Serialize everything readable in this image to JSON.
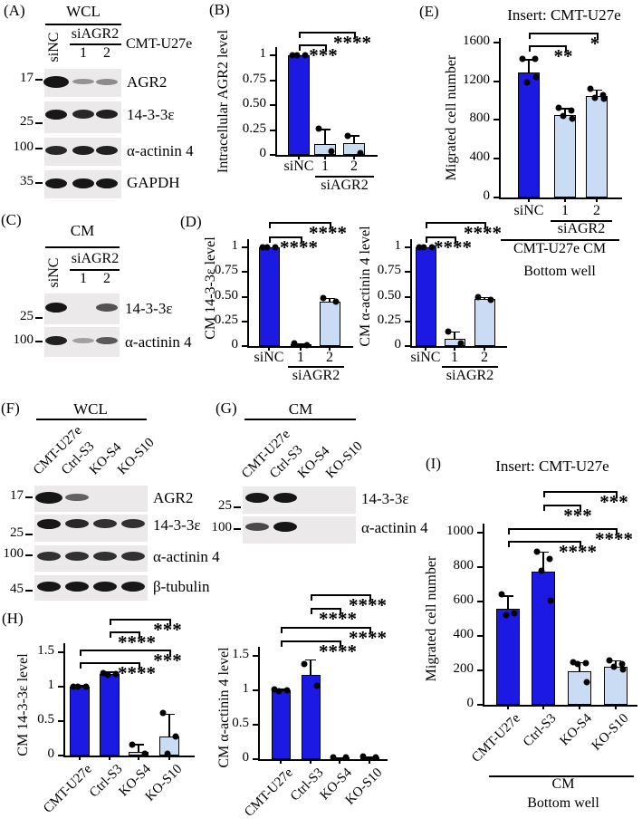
{
  "colors": {
    "dark_bar": "#1c19e3",
    "light_bar": "#cadcf3",
    "bar_border": "#000000",
    "blot_bg": "#ebe9e9",
    "band": "#161616",
    "text": "#000000"
  },
  "panel_letters": {
    "A": "(A)",
    "B": "(B)",
    "C": "(C)",
    "D": "(D)",
    "E": "(E)",
    "F": "(F)",
    "G": "(G)",
    "H": "(H)",
    "I": "(I)"
  },
  "blots": [
    {
      "id": "A",
      "header": "WCL",
      "first_lane": "siNC",
      "group_label": "siAGR2",
      "group_lanes": [
        "1",
        "2"
      ],
      "side_label": "CMT-U27e",
      "rows": [
        {
          "marker": "17",
          "label": "AGR2",
          "bands": [
            1.3,
            0.2,
            0.25
          ]
        },
        {
          "marker": "25",
          "label": "14-3-3ε",
          "bands": [
            0.95,
            0.85,
            0.9
          ]
        },
        {
          "marker": "100",
          "label": "α-actinin 4",
          "bands": [
            0.85,
            0.9,
            0.9
          ]
        },
        {
          "marker": "35",
          "label": "GAPDH",
          "bands": [
            1,
            1,
            1
          ]
        }
      ]
    },
    {
      "id": "C",
      "header": "CM",
      "first_lane": "siNC",
      "group_label": "siAGR2",
      "group_lanes": [
        "1",
        "2"
      ],
      "side_label": "",
      "rows": [
        {
          "marker": "25",
          "label": "14-3-3ε",
          "bands": [
            1,
            0,
            0.6
          ]
        },
        {
          "marker": "100",
          "label": "α-actinin 4",
          "bands": [
            0.9,
            0.12,
            0.55
          ]
        }
      ]
    },
    {
      "id": "F",
      "header": "WCL",
      "lanes": [
        "CMT-U27e",
        "Ctrl-S3",
        "KO-S4",
        "KO-S10"
      ],
      "rows": [
        {
          "marker": "17",
          "label": "AGR2",
          "bands": [
            1.3,
            0.5,
            0,
            0
          ]
        },
        {
          "marker": "25",
          "label": "14-3-3ε",
          "bands": [
            0.95,
            0.85,
            0.8,
            0.8
          ]
        },
        {
          "marker": "100",
          "label": "α-actinin 4",
          "bands": [
            0.8,
            0.8,
            0.8,
            0.8
          ]
        },
        {
          "marker": "45",
          "label": "β-tubulin",
          "bands": [
            1,
            1,
            0.95,
            0.95
          ]
        }
      ]
    },
    {
      "id": "G",
      "header": "CM",
      "lanes": [
        "CMT-U27e",
        "Ctrl-S3",
        "KO-S4",
        "KO-S10"
      ],
      "rows": [
        {
          "marker": "25",
          "label": "14-3-3ε",
          "bands": [
            0.95,
            1,
            0,
            0
          ]
        },
        {
          "marker": "100",
          "label": "α-actinin 4",
          "bands": [
            0.65,
            1,
            0,
            0
          ]
        }
      ]
    }
  ],
  "chart_data": [
    {
      "id": "B",
      "type": "bar",
      "title": "",
      "ylabel": "Intracellular AGR2 level",
      "categories": [
        "siNC",
        "1",
        "2"
      ],
      "values": [
        1,
        0.11,
        0.12
      ],
      "errors": [
        0,
        0.15,
        0.08
      ],
      "dots": [
        [
          1,
          1,
          1
        ],
        [
          0.26,
          0.04
        ],
        [
          0.19,
          0.02
        ]
      ],
      "bar_style": [
        "dark",
        "light",
        "light"
      ],
      "ylim": [
        0,
        1.08
      ],
      "yticks": [
        0,
        0.25,
        0.5,
        0.75,
        1
      ],
      "ytick_labels": [
        "0",
        "0.25",
        "0.50",
        "0.75",
        "1"
      ],
      "group": {
        "label": "siAGR2",
        "from": 1,
        "to": 2
      },
      "footer": [],
      "sig": [
        {
          "a": 0,
          "b": 1,
          "stars": "***"
        },
        {
          "a": 0,
          "b": 2,
          "stars": "****"
        }
      ]
    },
    {
      "id": "D1",
      "type": "bar",
      "title": "",
      "ylabel": "CM 14-3-3ε level",
      "categories": [
        "siNC",
        "1",
        "2"
      ],
      "values": [
        1,
        0.02,
        0.45
      ],
      "errors": [
        0,
        0.01,
        0.04
      ],
      "dots": [
        [
          1,
          1,
          1
        ],
        [
          0.03,
          0.01
        ],
        [
          0.49,
          0.45
        ]
      ],
      "bar_style": [
        "dark",
        "light",
        "light"
      ],
      "ylim": [
        0,
        1.08
      ],
      "yticks": [
        0,
        0.25,
        0.5,
        0.75,
        1
      ],
      "ytick_labels": [
        "0",
        "0.25",
        "0.50",
        "0.75",
        "1"
      ],
      "group": {
        "label": "siAGR2",
        "from": 1,
        "to": 2
      },
      "footer": [],
      "sig": [
        {
          "a": 0,
          "b": 1,
          "stars": "****"
        },
        {
          "a": 0,
          "b": 2,
          "stars": "****"
        }
      ]
    },
    {
      "id": "D2",
      "type": "bar",
      "title": "",
      "ylabel": "CM α-actinin 4 level",
      "categories": [
        "siNC",
        "1",
        "2"
      ],
      "values": [
        1,
        0.07,
        0.48
      ],
      "errors": [
        0,
        0.08,
        0.02
      ],
      "dots": [
        [
          1,
          1,
          1
        ],
        [
          0.15,
          0.03
        ],
        [
          0.5,
          0.47
        ]
      ],
      "bar_style": [
        "dark",
        "light",
        "light"
      ],
      "ylim": [
        0,
        1.08
      ],
      "yticks": [
        0,
        0.25,
        0.5,
        0.75,
        1
      ],
      "ytick_labels": [
        "0",
        "0.25",
        "0.50",
        "0.75",
        "1"
      ],
      "group": {
        "label": "siAGR2",
        "from": 1,
        "to": 2
      },
      "footer": [],
      "sig": [
        {
          "a": 0,
          "b": 1,
          "stars": "****"
        },
        {
          "a": 0,
          "b": 2,
          "stars": "****"
        }
      ]
    },
    {
      "id": "E",
      "type": "bar",
      "title": "Insert: CMT-U27e",
      "ylabel": "Migrated cell number",
      "categories": [
        "siNC",
        "1",
        "2"
      ],
      "values": [
        1290,
        855,
        1050
      ],
      "errors": [
        140,
        70,
        65
      ],
      "dots": [
        [
          1430,
          1430,
          1190,
          1240
        ],
        [
          930,
          900,
          845,
          810
        ],
        [
          1120,
          1060,
          1030,
          1015
        ]
      ],
      "bar_style": [
        "dark",
        "light",
        "light"
      ],
      "ylim": [
        0,
        1650
      ],
      "yticks": [
        0,
        400,
        800,
        1200,
        1600
      ],
      "ytick_labels": [
        "0",
        "400",
        "800",
        "1200",
        "1600"
      ],
      "group": {
        "label": "siAGR2",
        "from": 1,
        "to": 2
      },
      "footer": [
        "CMT-U27e CM",
        "Bottom well"
      ],
      "sig": [
        {
          "a": 0,
          "b": 1,
          "stars": "**"
        },
        {
          "a": 0,
          "b": 2,
          "stars": "*"
        }
      ]
    },
    {
      "id": "H1",
      "type": "bar",
      "title": "",
      "ylabel": "CM 14-3-3ε level",
      "categories": [
        "CMT-U27e",
        "Ctrl-S3",
        "KO-S4",
        "KO-S10"
      ],
      "values": [
        1,
        1.18,
        0.05,
        0.28
      ],
      "errors": [
        0.02,
        0.04,
        0.12,
        0.33
      ],
      "dots": [
        [
          1,
          1,
          1
        ],
        [
          1.2,
          1.18,
          1.17
        ],
        [
          0.16,
          0.03
        ],
        [
          0.62,
          0.28,
          0.02
        ]
      ],
      "bar_style": [
        "dark",
        "dark",
        "light",
        "light"
      ],
      "x_rotated": true,
      "ylim": [
        0,
        1.6
      ],
      "yticks": [
        0,
        0.5,
        1,
        1.5
      ],
      "ytick_labels": [
        "0",
        "0.5",
        "1",
        "1.5"
      ],
      "footer": [],
      "sig": [
        {
          "a": 1,
          "b": 3,
          "stars": "***"
        },
        {
          "a": 1,
          "b": 2,
          "stars": "****"
        },
        {
          "a": 0,
          "b": 3,
          "stars": "***"
        },
        {
          "a": 0,
          "b": 2,
          "stars": "****"
        }
      ]
    },
    {
      "id": "H2",
      "type": "bar",
      "title": "",
      "ylabel": "CM α-actinin 4 level",
      "categories": [
        "CMT-U27e",
        "Ctrl-S3",
        "KO-S4",
        "KO-S10"
      ],
      "values": [
        1,
        1.22,
        0.02,
        0.02
      ],
      "errors": [
        0.02,
        0.23,
        0.01,
        0.02
      ],
      "dots": [
        [
          1.01,
          1,
          0.99
        ],
        [
          1.38,
          1.07
        ],
        [
          0.03,
          0.02
        ],
        [
          0.04,
          0.02
        ]
      ],
      "bar_style": [
        "dark",
        "dark",
        "light",
        "light"
      ],
      "x_rotated": true,
      "ylim": [
        0,
        1.6
      ],
      "yticks": [
        0,
        0.5,
        1,
        1.5
      ],
      "ytick_labels": [
        "0",
        "0.5",
        "1",
        "1.5"
      ],
      "footer": [],
      "sig": [
        {
          "a": 1,
          "b": 3,
          "stars": "****"
        },
        {
          "a": 1,
          "b": 2,
          "stars": "****"
        },
        {
          "a": 0,
          "b": 3,
          "stars": "****"
        },
        {
          "a": 0,
          "b": 2,
          "stars": "****"
        }
      ]
    },
    {
      "id": "I",
      "type": "bar",
      "title": "Insert: CMT-U27e",
      "ylabel": "Migrated cell number",
      "categories": [
        "CMT-U27e",
        "Ctrl-S3",
        "KO-S4",
        "KO-S10"
      ],
      "values": [
        560,
        775,
        195,
        220
      ],
      "errors": [
        75,
        115,
        55,
        40
      ],
      "dots": [
        [
          640,
          530,
          520
        ],
        [
          890,
          845,
          780,
          605
        ],
        [
          250,
          240,
          235,
          130
        ],
        [
          260,
          235,
          220,
          205
        ]
      ],
      "bar_style": [
        "dark",
        "dark",
        "light",
        "light"
      ],
      "x_rotated": true,
      "ylim": [
        0,
        1050
      ],
      "yticks": [
        0,
        200,
        400,
        600,
        800,
        1000
      ],
      "ytick_labels": [
        "0",
        "200",
        "400",
        "600",
        "800",
        "1000"
      ],
      "footer": [
        "CM",
        "Bottom well"
      ],
      "sig": [
        {
          "a": 1,
          "b": 3,
          "stars": "***"
        },
        {
          "a": 1,
          "b": 2,
          "stars": "***"
        },
        {
          "a": 0,
          "b": 3,
          "stars": "****"
        },
        {
          "a": 0,
          "b": 2,
          "stars": "****"
        }
      ]
    }
  ]
}
